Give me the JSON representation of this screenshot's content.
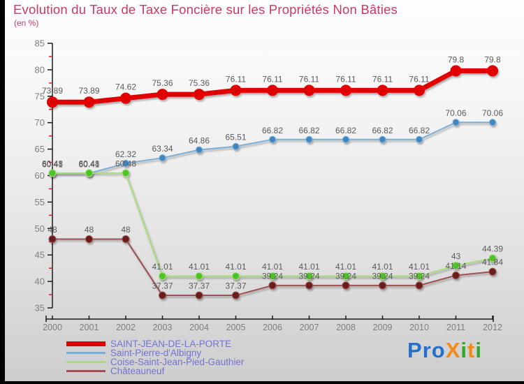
{
  "title": "Evolution du Taux de Taxe Foncière sur les Propriétés Non Bâties",
  "subtitle": "(en %)",
  "chart_data": {
    "type": "line",
    "x": [
      2000,
      2001,
      2002,
      2003,
      2004,
      2005,
      2006,
      2007,
      2008,
      2009,
      2010,
      2011,
      2012
    ],
    "ylim": [
      35,
      85
    ],
    "ytick_step": 5,
    "yminor_tick_step": 2.5,
    "grid": false,
    "legend_position": "bottom-left",
    "axis_color": "#1a1a1a",
    "minor_tick_color": "#cc2222",
    "tick_label_color": "#7f7f7f",
    "label_color": "#5b5b5b",
    "series": [
      {
        "name": "SAINT-JEAN-DE-LA-PORTE",
        "color": "#e00000",
        "marker_color": "#e00000",
        "line_width": 7,
        "marker_radius": 7.5,
        "values": [
          73.89,
          73.89,
          74.62,
          75.36,
          75.36,
          76.11,
          76.11,
          76.11,
          76.11,
          76.11,
          76.11,
          79.8,
          79.8
        ]
      },
      {
        "name": "Saint-Pierre-d'Albigny",
        "color": "#79aed6",
        "marker_color": "#3f86c0",
        "line_width": 2,
        "marker_radius": 4.5,
        "values": [
          60.41,
          60.41,
          62.32,
          63.34,
          64.86,
          65.51,
          66.82,
          66.82,
          66.82,
          66.82,
          66.82,
          70.06,
          70.06
        ]
      },
      {
        "name": "Coise-Saint-Jean-Pied-Gauthier",
        "color": "#a7dc7c",
        "marker_color": "#4ec428",
        "line_width": 2,
        "marker_radius": 5,
        "values": [
          60.48,
          60.48,
          60.48,
          41.01,
          41.01,
          41.01,
          41.01,
          41.01,
          41.01,
          41.01,
          41.01,
          43,
          44.39
        ]
      },
      {
        "name": "Châteauneuf",
        "color": "#9a5150",
        "marker_color": "#681c1b",
        "line_width": 2,
        "marker_radius": 5,
        "values": [
          48,
          48,
          48,
          37.37,
          37.37,
          37.37,
          39.24,
          39.24,
          39.24,
          39.24,
          39.24,
          41.14,
          41.84
        ]
      }
    ]
  },
  "logo": {
    "text": "Proxiti",
    "letters": [
      {
        "ch": "P",
        "color": "#2470cd"
      },
      {
        "ch": "r",
        "color": "#2470cd"
      },
      {
        "ch": "o",
        "color": "#2470cd"
      },
      {
        "ch": "X",
        "color": "#f28a15"
      },
      {
        "ch": "i",
        "color": "#35a52c"
      },
      {
        "ch": "t",
        "color": "#f28a15"
      },
      {
        "ch": "i",
        "color": "#35a52c"
      }
    ]
  }
}
